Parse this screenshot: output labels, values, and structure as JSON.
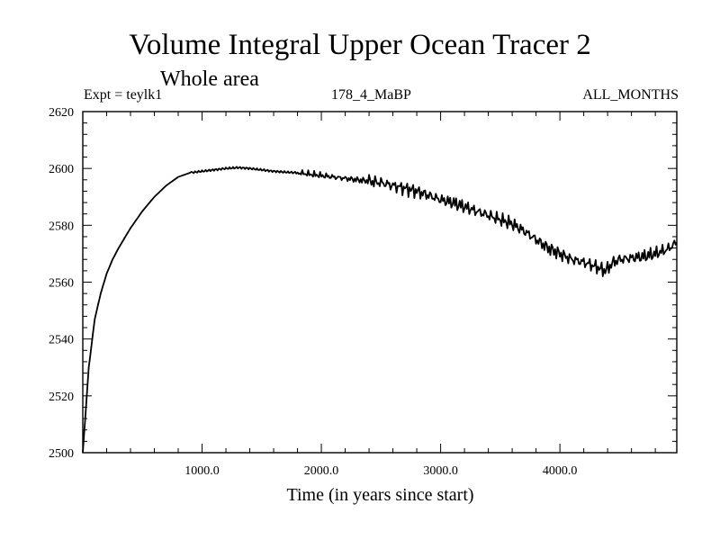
{
  "chart_data": {
    "type": "line",
    "title": "Volume Integral Upper Ocean Tracer 2",
    "subtitle": "Whole area",
    "expt_label": "Expt = teylk1",
    "center_label": "178_4_MaBP",
    "right_label": "ALL_MONTHS",
    "xlabel": "Time (in years since start)",
    "ylabel": "",
    "xlim": [
      0,
      4980
    ],
    "ylim": [
      2500,
      2620
    ],
    "x_ticks": [
      1000,
      2000,
      3000,
      4000
    ],
    "x_tick_labels": [
      "1000.0",
      "2000.0",
      "3000.0",
      "4000.0"
    ],
    "y_ticks": [
      2500,
      2520,
      2540,
      2560,
      2580,
      2600,
      2620
    ],
    "y_tick_labels": [
      "2500",
      "2520",
      "2540",
      "2560",
      "2580",
      "2600",
      "2620"
    ],
    "grid": false,
    "series": [
      {
        "name": "Upper Ocean Tracer 2",
        "x": [
          0,
          20,
          50,
          100,
          150,
          200,
          250,
          300,
          400,
          500,
          600,
          700,
          800,
          900,
          1000,
          1100,
          1200,
          1300,
          1400,
          1500,
          1600,
          1700,
          1800,
          1900,
          2000,
          2100,
          2200,
          2300,
          2400,
          2500,
          2600,
          2700,
          2800,
          2900,
          3000,
          3100,
          3200,
          3300,
          3400,
          3500,
          3600,
          3700,
          3800,
          3900,
          4000,
          4100,
          4200,
          4300,
          4380,
          4450,
          4500,
          4600,
          4700,
          4800,
          4900,
          4980
        ],
        "values": [
          2500,
          2512,
          2530,
          2547,
          2556,
          2563,
          2568,
          2572,
          2579,
          2585,
          2590,
          2594,
          2597,
          2598.5,
          2599,
          2599.5,
          2600,
          2600.3,
          2600,
          2599.5,
          2599,
          2598.7,
          2598.5,
          2598,
          2597.5,
          2597,
          2596.5,
          2596,
          2595.5,
          2595,
          2594,
          2593,
          2592,
          2590.5,
          2589,
          2588,
          2586.5,
          2585,
          2583.5,
          2582,
          2580.5,
          2578,
          2575,
          2572,
          2570,
          2568,
          2567,
          2565.5,
          2564,
          2567,
          2568,
          2568.5,
          2569,
          2570,
          2571.5,
          2574
        ]
      }
    ]
  }
}
